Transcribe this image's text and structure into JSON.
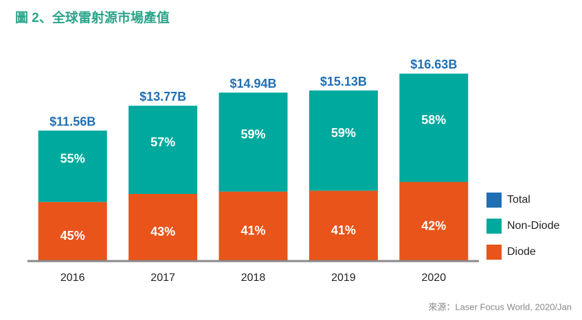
{
  "chart_data": {
    "type": "bar",
    "title": "圖 2、全球雷射源市場產值",
    "source": "來源：Laser Focus World, 2020/Jan",
    "categories": [
      "2016",
      "2017",
      "2018",
      "2019",
      "2020"
    ],
    "ylim": [
      0,
      18
    ],
    "series": [
      {
        "name": "Total",
        "color": "#1f6fb5",
        "values": [
          11.56,
          13.77,
          14.94,
          15.13,
          16.63
        ],
        "value_labels": [
          "$11.56B",
          "$13.77B",
          "$14.94B",
          "$15.13B",
          "$16.63B"
        ]
      },
      {
        "name": "Non-Diode",
        "color": "#00a99d",
        "values": [
          55,
          57,
          59,
          59,
          58
        ],
        "value_labels": [
          "55%",
          "57%",
          "59%",
          "59%",
          "58%"
        ]
      },
      {
        "name": "Diode",
        "color": "#e8541a",
        "values": [
          45,
          43,
          41,
          41,
          42
        ],
        "value_labels": [
          "45%",
          "43%",
          "41%",
          "41%",
          "42%"
        ]
      }
    ]
  }
}
